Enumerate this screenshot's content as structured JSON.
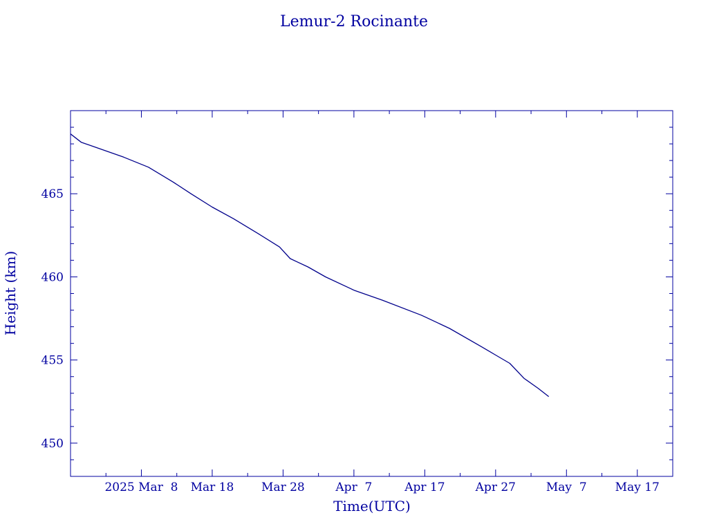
{
  "chart_data": {
    "type": "line",
    "title": "Lemur-2 Rocinante",
    "xlabel": "Time(UTC)",
    "ylabel": "Height (km)",
    "color": "#00008b",
    "text_color": "#0000a0",
    "background": "#ffffff",
    "grid": false,
    "ylim": [
      448,
      470
    ],
    "yticks": [
      450,
      455,
      460,
      465
    ],
    "ytick_labels": [
      "450",
      "455",
      "460",
      "465"
    ],
    "xlim": [
      "2025-02-26T00:00",
      "2025-05-22T00:00"
    ],
    "xticks": [
      "2025-03-08",
      "2025-03-18",
      "2025-03-28",
      "2025-04-07",
      "2025-04-17",
      "2025-04-27",
      "2025-05-07",
      "2025-05-17"
    ],
    "xtick_labels": [
      "2025 Mar  8",
      "Mar 18",
      "Mar 28",
      "Apr  7",
      "Apr 17",
      "Apr 27",
      "May  7",
      "May 17"
    ],
    "series": [
      {
        "x": [
          "2025-02-26T00:00",
          "2025-02-27T12:00",
          "2025-03-01T12:00",
          "2025-03-05T12:00",
          "2025-03-09T00:00",
          "2025-03-12T12:00",
          "2025-03-15T00:00",
          "2025-03-18T00:00",
          "2025-03-21T00:00",
          "2025-03-24T12:00",
          "2025-03-27T12:00",
          "2025-03-29T00:00",
          "2025-03-30T00:00",
          "2025-03-31T12:00",
          "2025-04-03T00:00",
          "2025-04-07T00:00",
          "2025-04-11T00:00",
          "2025-04-16T12:00",
          "2025-04-17T00:00",
          "2025-04-20T12:00",
          "2025-04-25T00:00",
          "2025-04-27T00:00",
          "2025-04-29T00:00",
          "2025-05-01T00:00",
          "2025-05-03T00:00",
          "2025-05-04T12:00"
        ],
        "y": [
          468.6,
          468.1,
          467.8,
          467.2,
          466.6,
          465.7,
          465.0,
          464.2,
          463.5,
          462.6,
          461.8,
          461.1,
          460.9,
          460.6,
          460.0,
          459.2,
          458.6,
          457.7,
          457.6,
          456.9,
          455.8,
          455.3,
          454.8,
          453.9,
          453.3,
          452.8
        ]
      }
    ]
  }
}
